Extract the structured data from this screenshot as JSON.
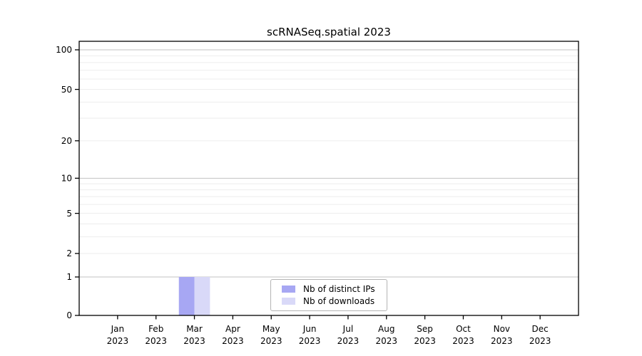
{
  "page": {
    "background": "#ffffff"
  },
  "chart_data": {
    "type": "bar",
    "title": "scRNASeq.spatial 2023",
    "x": {
      "categories": [
        "Jan",
        "Feb",
        "Mar",
        "Apr",
        "May",
        "Jun",
        "Jul",
        "Aug",
        "Sep",
        "Oct",
        "Nov",
        "Dec"
      ],
      "year_label": "2023"
    },
    "series": [
      {
        "name": "Nb of distinct IPs",
        "color": "#a7a7f3",
        "values": [
          0,
          0,
          1,
          0,
          0,
          0,
          0,
          0,
          0,
          0,
          0,
          0
        ]
      },
      {
        "name": "Nb of downloads",
        "color": "#d9d9f8",
        "values": [
          0,
          0,
          1,
          0,
          0,
          0,
          0,
          0,
          0,
          0,
          0,
          0
        ]
      }
    ],
    "y_axis": {
      "scale": "log1p",
      "ticks": [
        0,
        1,
        2,
        5,
        10,
        20,
        50,
        100
      ],
      "major_gridlines": [
        1,
        10,
        100
      ],
      "minor_gridlines": [
        2,
        3,
        4,
        5,
        6,
        7,
        8,
        9,
        20,
        30,
        40,
        50,
        60,
        70,
        80,
        90
      ],
      "range": [
        0,
        116
      ]
    },
    "legend": {
      "position": "lower center",
      "entries": [
        "Nb of distinct IPs",
        "Nb of downloads"
      ]
    },
    "colors": {
      "axis": "#000000",
      "text": "#000000",
      "major_grid": "#c3c3c3",
      "minor_grid": "#ededed",
      "legend_border": "#b4b4b4"
    }
  }
}
